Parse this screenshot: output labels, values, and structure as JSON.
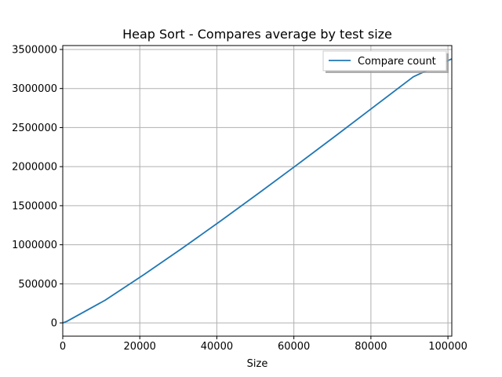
{
  "chart_data": {
    "type": "line",
    "title": "Heap Sort - Compares average by test size",
    "xlabel": "Size",
    "ylabel": "",
    "xlim": [
      0,
      101000
    ],
    "ylim": [
      -170000,
      3550000
    ],
    "xticks": [
      0,
      20000,
      40000,
      60000,
      80000,
      100000
    ],
    "yticks": [
      0,
      500000,
      1000000,
      1500000,
      2000000,
      2500000,
      3000000,
      3500000
    ],
    "grid": true,
    "legend_position": "top-right",
    "series": [
      {
        "name": "Compare count",
        "color": "#1f77b4",
        "x": [
          100,
          1100,
          11000,
          21000,
          31000,
          41000,
          51000,
          61000,
          71000,
          81000,
          91000,
          101000
        ],
        "y": [
          1000,
          20000,
          290000,
          615000,
          955000,
          1305000,
          1665000,
          2030000,
          2400000,
          2775000,
          3150000,
          3380000
        ]
      }
    ]
  }
}
